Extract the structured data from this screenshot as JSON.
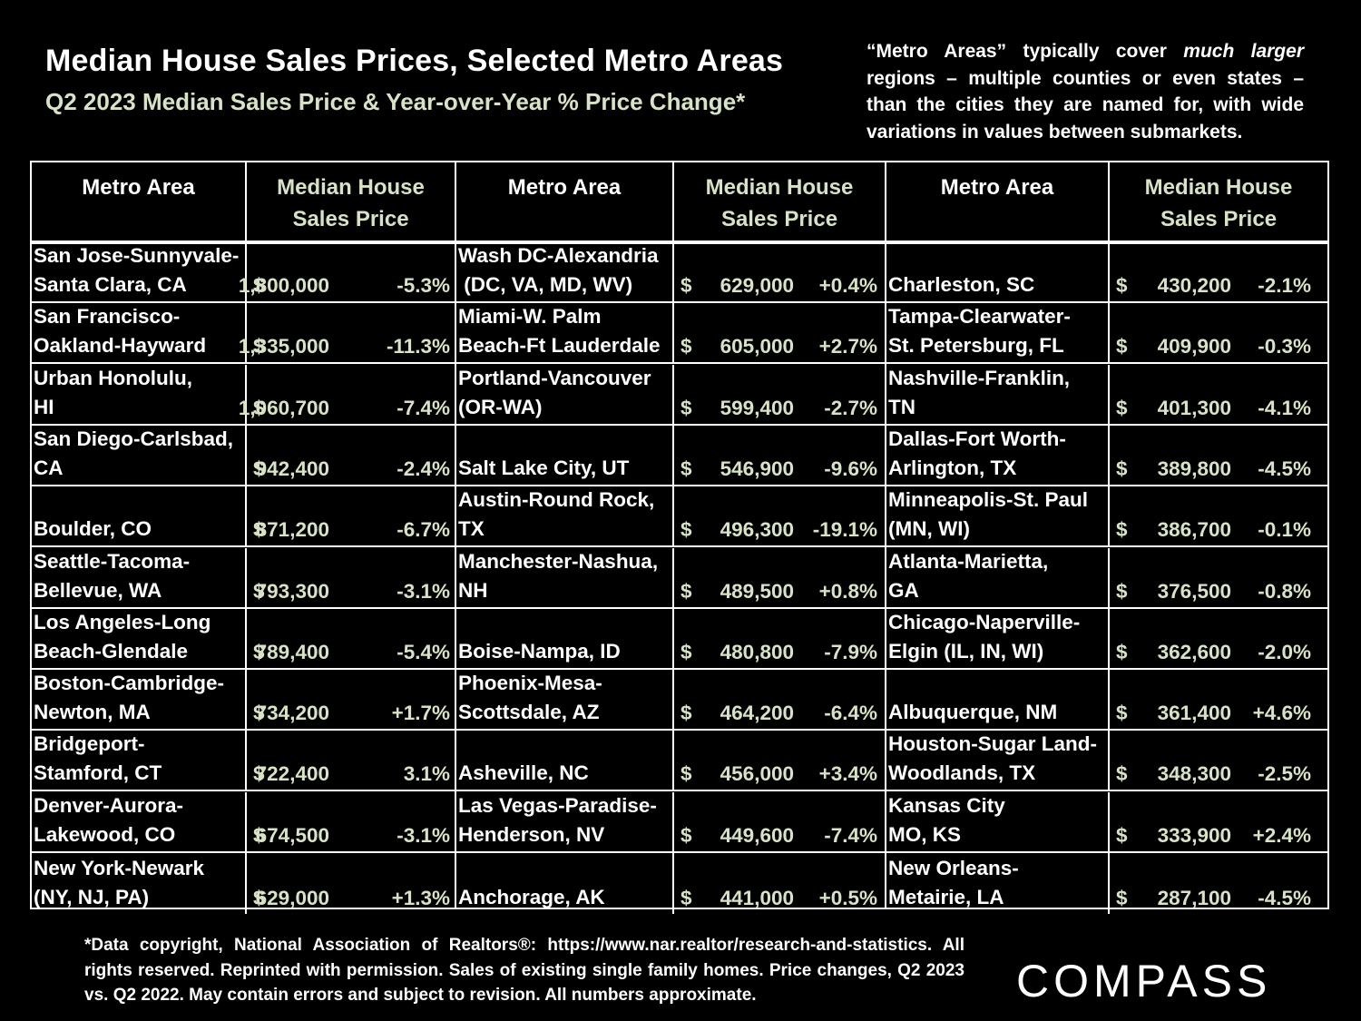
{
  "header": {
    "title": "Median House Sales Prices, Selected Metro Areas",
    "subtitle": "Q2 2023 Median Sales Price & Year-over-Year % Price Change*"
  },
  "note": {
    "part1": "“Metro Areas” typically cover ",
    "emph": "much larger",
    "part2": " regions – multiple counties or even states – than the cities they are named for, with wide variations in values between submarkets."
  },
  "columns": [
    {
      "area_header": "Metro Area",
      "price_header": [
        "Median House",
        "Sales Price"
      ],
      "rows": [
        {
          "area": [
            "San Jose-Sunnyvale-",
            "Santa Clara, CA"
          ],
          "price": "1,800,000",
          "change": "-5.3%"
        },
        {
          "area": [
            "San Francisco-",
            "Oakland-Hayward"
          ],
          "price": "1,335,000",
          "change": "-11.3%"
        },
        {
          "area": [
            "Urban Honolulu,",
            "HI"
          ],
          "price": "1,060,700",
          "change": "-7.4%"
        },
        {
          "area": [
            "San Diego-Carlsbad,",
            "CA"
          ],
          "price": "942,400",
          "change": "-2.4%"
        },
        {
          "area": [
            "Boulder, CO"
          ],
          "price": "871,200",
          "change": "-6.7%"
        },
        {
          "area": [
            "Seattle-Tacoma-",
            "Bellevue, WA"
          ],
          "price": "793,300",
          "change": "-3.1%"
        },
        {
          "area": [
            "Los Angeles-Long",
            "Beach-Glendale"
          ],
          "price": "789,400",
          "change": "-5.4%"
        },
        {
          "area": [
            "Boston-Cambridge-",
            "Newton, MA"
          ],
          "price": "734,200",
          "change": "+1.7%"
        },
        {
          "area": [
            "Bridgeport-",
            "Stamford, CT"
          ],
          "price": "722,400",
          "change": "3.1%"
        },
        {
          "area": [
            "Denver-Aurora-",
            "Lakewood, CO"
          ],
          "price": "674,500",
          "change": "-3.1%"
        },
        {
          "area": [
            "New York-Newark",
            "(NY, NJ, PA)"
          ],
          "price": "629,000",
          "change": "+1.3%"
        }
      ]
    },
    {
      "area_header": "Metro Area",
      "price_header": [
        "Median House",
        "Sales Price"
      ],
      "rows": [
        {
          "area": [
            "Wash DC-Alexandria",
            " (DC, VA, MD, WV)"
          ],
          "price": "629,000",
          "change": "+0.4%"
        },
        {
          "area": [
            "Miami-W. Palm",
            "Beach-Ft Lauderdale"
          ],
          "price": "605,000",
          "change": "+2.7%"
        },
        {
          "area": [
            "Portland-Vancouver",
            "(OR-WA)"
          ],
          "price": "599,400",
          "change": "-2.7%"
        },
        {
          "area": [
            "Salt Lake City, UT"
          ],
          "price": "546,900",
          "change": "-9.6%"
        },
        {
          "area": [
            "Austin-Round Rock,",
            "TX"
          ],
          "price": "496,300",
          "change": "-19.1%"
        },
        {
          "area": [
            "Manchester-Nashua,",
            "NH"
          ],
          "price": "489,500",
          "change": "+0.8%"
        },
        {
          "area": [
            "Boise-Nampa, ID"
          ],
          "price": "480,800",
          "change": "-7.9%"
        },
        {
          "area": [
            "Phoenix-Mesa-",
            "Scottsdale, AZ"
          ],
          "price": "464,200",
          "change": "-6.4%"
        },
        {
          "area": [
            "Asheville, NC"
          ],
          "price": "456,000",
          "change": "+3.4%"
        },
        {
          "area": [
            "Las Vegas-Paradise-",
            "Henderson, NV"
          ],
          "price": "449,600",
          "change": "-7.4%"
        },
        {
          "area": [
            "Anchorage, AK"
          ],
          "price": "441,000",
          "change": "+0.5%"
        }
      ]
    },
    {
      "area_header": "Metro Area",
      "price_header": [
        "Median House",
        "Sales Price"
      ],
      "rows": [
        {
          "area": [
            "Charleston, SC"
          ],
          "price": "430,200",
          "change": "-2.1%"
        },
        {
          "area": [
            "Tampa-Clearwater-",
            "St. Petersburg, FL"
          ],
          "price": "409,900",
          "change": "-0.3%"
        },
        {
          "area": [
            "Nashville-Franklin,",
            "TN"
          ],
          "price": "401,300",
          "change": "-4.1%"
        },
        {
          "area": [
            "Dallas-Fort Worth-",
            "Arlington, TX"
          ],
          "price": "389,800",
          "change": "-4.5%"
        },
        {
          "area": [
            "Minneapolis-St. Paul",
            "(MN, WI)"
          ],
          "price": "386,700",
          "change": "-0.1%"
        },
        {
          "area": [
            "Atlanta-Marietta,",
            "GA"
          ],
          "price": "376,500",
          "change": "-0.8%"
        },
        {
          "area": [
            "Chicago-Naperville-",
            "Elgin (IL, IN, WI)"
          ],
          "price": "362,600",
          "change": "-2.0%"
        },
        {
          "area": [
            "Albuquerque, NM"
          ],
          "price": "361,400",
          "change": "+4.6%"
        },
        {
          "area": [
            "Houston-Sugar Land-",
            "Woodlands, TX"
          ],
          "price": "348,300",
          "change": "-2.5%"
        },
        {
          "area": [
            "Kansas City",
            "MO, KS"
          ],
          "price": "333,900",
          "change": "+2.4%"
        },
        {
          "area": [
            "New Orleans-",
            "Metairie, LA"
          ],
          "price": "287,100",
          "change": "-4.5%"
        }
      ]
    }
  ],
  "currency_symbol": "$",
  "footnote": "*Data copyright, National Association of Realtors®:  https://www.nar.realtor/research-and-statistics. All rights reserved. Reprinted with permission. Sales of existing single family homes. Price changes, Q2 2023 vs. Q2 2022. May contain errors and subject to revision. All numbers approximate.",
  "logo": "COMPASS",
  "colors": {
    "background": "#000000",
    "text": "#ffffff",
    "price_text": "#d7e3c4"
  }
}
